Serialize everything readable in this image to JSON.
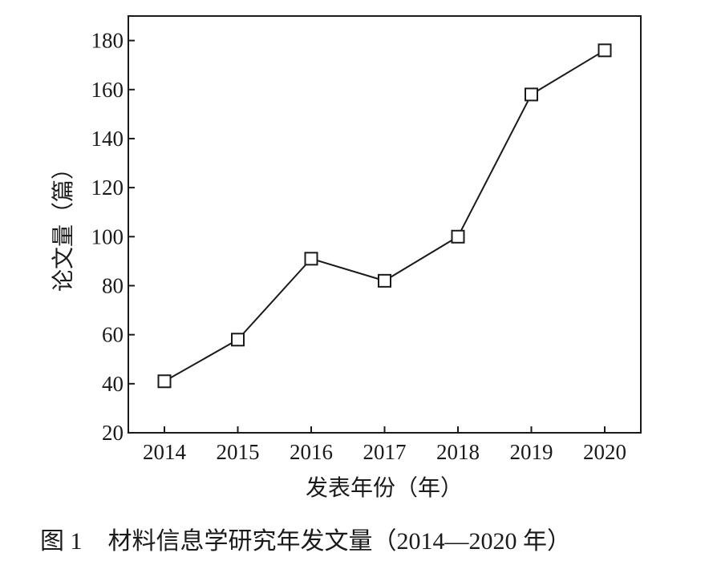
{
  "chart_data": {
    "type": "line",
    "categories": [
      "2014",
      "2015",
      "2016",
      "2017",
      "2018",
      "2019",
      "2020"
    ],
    "series": [
      {
        "values": [
          41,
          58,
          91,
          82,
          100,
          158,
          176
        ]
      }
    ],
    "xlabel": "发表年份（年）",
    "ylabel": "论文量（篇）",
    "ylim": [
      20,
      190
    ],
    "yticks": [
      20,
      40,
      60,
      80,
      100,
      120,
      140,
      160,
      180
    ],
    "marker": "hollow-square",
    "grid": false,
    "line_color": "#1a1a1a"
  },
  "caption": {
    "label": "图 1",
    "text": "材料信息学研究年发文量（2014—2020 年）"
  }
}
